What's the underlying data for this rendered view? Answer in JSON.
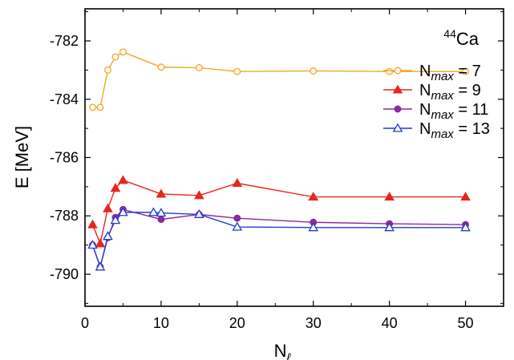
{
  "chart_data": {
    "type": "line",
    "annotation": {
      "mass": "44",
      "element": "Ca"
    },
    "xlabel": {
      "base": "N",
      "sub": "ℓ"
    },
    "ylabel": "E [MeV]",
    "xlim": [
      0,
      55
    ],
    "ylim": [
      -791.1,
      -780.9
    ],
    "xticks": [
      0,
      10,
      20,
      30,
      40,
      50
    ],
    "yticks": [
      -782,
      -784,
      -786,
      -788,
      -790
    ],
    "grid": false,
    "legend_position": "right",
    "series": [
      {
        "name": "N_max = 7",
        "label_base": "N",
        "label_sub": "max",
        "label_value": "= 7",
        "color": "#f5a623",
        "marker": "circle-open",
        "x": [
          1,
          2,
          3,
          4,
          5,
          10,
          15,
          20,
          30,
          40,
          50
        ],
        "y": [
          -784.28,
          -784.28,
          -783.0,
          -782.55,
          -782.38,
          -782.9,
          -782.92,
          -783.05,
          -783.03,
          -783.05,
          -783.05
        ]
      },
      {
        "name": "N_max = 9",
        "label_base": "N",
        "label_sub": "max",
        "label_value": "= 9",
        "color": "#e8261c",
        "marker": "triangle-filled",
        "x": [
          1,
          2,
          3,
          4,
          5,
          10,
          15,
          20,
          30,
          40,
          50
        ],
        "y": [
          -788.3,
          -788.95,
          -787.75,
          -787.05,
          -786.78,
          -787.25,
          -787.3,
          -786.88,
          -787.35,
          -787.35,
          -787.35
        ]
      },
      {
        "name": "N_max = 11",
        "label_base": "N",
        "label_sub": "max",
        "label_value": "= 11",
        "color": "#8b2a9c",
        "marker": "circle-filled",
        "x": [
          1,
          2,
          3,
          4,
          5,
          10,
          15,
          20,
          30,
          40,
          50
        ],
        "y": [
          -789.0,
          -789.75,
          -788.75,
          -788.05,
          -787.78,
          -788.12,
          -787.95,
          -788.08,
          -788.22,
          -788.27,
          -788.3
        ]
      },
      {
        "name": "N_max = 13",
        "label_base": "N",
        "label_sub": "max",
        "label_value": "= 13",
        "color": "#1f3dd1",
        "marker": "triangle-open",
        "x": [
          1,
          2,
          3,
          4,
          5,
          9,
          10,
          15,
          20,
          30,
          40,
          50
        ],
        "y": [
          -789.0,
          -789.75,
          -788.7,
          -788.15,
          -787.88,
          -787.88,
          -787.9,
          -787.95,
          -788.38,
          -788.4,
          -788.4,
          -788.4
        ]
      }
    ]
  }
}
